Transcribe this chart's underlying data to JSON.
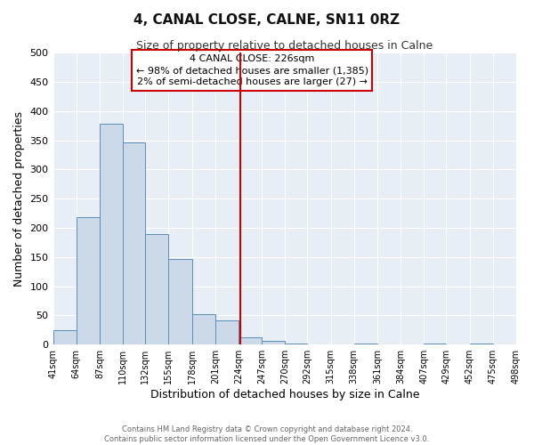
{
  "title": "4, CANAL CLOSE, CALNE, SN11 0RZ",
  "subtitle": "Size of property relative to detached houses in Calne",
  "xlabel": "Distribution of detached houses by size in Calne",
  "ylabel": "Number of detached properties",
  "bin_edges": [
    41,
    64,
    87,
    110,
    132,
    155,
    178,
    201,
    224,
    247,
    270,
    292,
    315,
    338,
    361,
    384,
    407,
    429,
    452,
    475,
    498
  ],
  "bar_heights": [
    25,
    218,
    378,
    347,
    190,
    146,
    52,
    41,
    13,
    7,
    2,
    0,
    0,
    2,
    0,
    0,
    2,
    0,
    2,
    0
  ],
  "bar_color": "#ccd9e8",
  "bar_edgecolor": "#5b8db8",
  "reference_line_x": 226,
  "reference_line_color": "#cc0000",
  "annotation_box_title": "4 CANAL CLOSE: 226sqm",
  "annotation_line1": "← 98% of detached houses are smaller (1,385)",
  "annotation_line2": "2% of semi-detached houses are larger (27) →",
  "annotation_box_edgecolor": "#cc0000",
  "ylim": [
    0,
    500
  ],
  "yticks": [
    0,
    50,
    100,
    150,
    200,
    250,
    300,
    350,
    400,
    450,
    500
  ],
  "tick_labels": [
    "41sqm",
    "64sqm",
    "87sqm",
    "110sqm",
    "132sqm",
    "155sqm",
    "178sqm",
    "201sqm",
    "224sqm",
    "247sqm",
    "270sqm",
    "292sqm",
    "315sqm",
    "338sqm",
    "361sqm",
    "384sqm",
    "407sqm",
    "429sqm",
    "452sqm",
    "475sqm",
    "498sqm"
  ],
  "footer_line1": "Contains HM Land Registry data © Crown copyright and database right 2024.",
  "footer_line2": "Contains public sector information licensed under the Open Government Licence v3.0.",
  "plot_bg_color": "#e8eef5",
  "fig_bg_color": "#ffffff",
  "grid_color": "#ffffff"
}
